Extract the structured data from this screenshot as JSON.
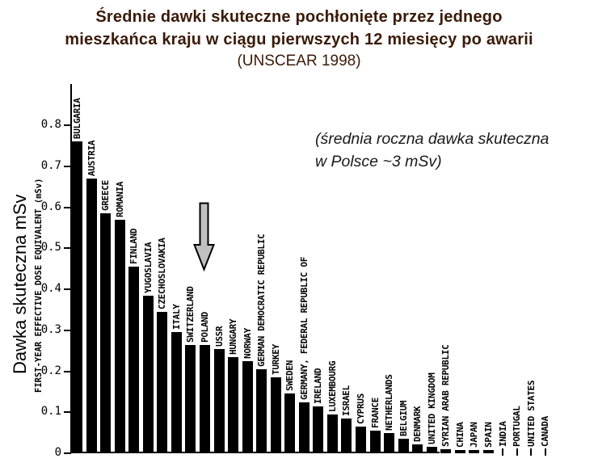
{
  "title": {
    "line1": "Średnie dawki skuteczne pochłonięte przez jednego",
    "line2": "mieszkańca kraju w ciągu pierwszych 12 miesięcy po awarii",
    "line3": "(UNSCEAR 1998)"
  },
  "annotation": {
    "line1": "(średnia roczna dawka skuteczna",
    "line2": "w Polsce ~3 mSv)"
  },
  "colors": {
    "title_text": "#3a1a08",
    "bar": "#000000",
    "arrow_fill": "#c0c0c0",
    "arrow_outline": "#000000",
    "background": "#ffffff"
  },
  "chart_data": {
    "type": "bar",
    "title": "Średnie dawki skuteczne pochłonięte przez jednego mieszkańca kraju w ciągu pierwszych 12 miesięcy po awarii (UNSCEAR 1998)",
    "xlabel": "",
    "ylabel": "FIRST-YEAR EFFECTIVE DOSE EQUIVALENT (mSv)",
    "ylabel_secondary": "Dawka skuteczna mSv",
    "ylim": [
      0,
      0.9
    ],
    "grid": false,
    "legend": false,
    "bar_color": "#000000",
    "yticks": [
      {
        "label": "0.8",
        "value": 0.8
      },
      {
        "label": "0.7",
        "value": 0.7
      },
      {
        "label": "0.6",
        "value": 0.6
      },
      {
        "label": "0.5",
        "value": 0.5
      },
      {
        "label": "0.4",
        "value": 0.4
      },
      {
        "label": "0.3",
        "value": 0.3
      },
      {
        "label": "0.2",
        "value": 0.2
      },
      {
        "label": "0.1",
        "value": 0.1
      },
      {
        "label": "0",
        "value": 0.0
      }
    ],
    "categories": [
      "BULGARIA",
      "AUSTRIA",
      "GREECE",
      "ROMANIA",
      "FINLAND",
      "YUGOSLAVIA",
      "CZECHOSLOVAKIA",
      "ITALY",
      "SWITZERLAND",
      "POLAND",
      "USSR",
      "HUNGARY",
      "NORWAY",
      "GERMAN DEMOCRATIC REPUBLIC",
      "TURKEY",
      "SWEDEN",
      "GERMANY, FEDERAL REPUBLIC OF",
      "IRELAND",
      "LUXEMBOURG",
      "ISRAEL",
      "CYPRUS",
      "FRANCE",
      "NETHERLANDS",
      "BELGIUM",
      "DENMARK",
      "UNITED KINGDOM",
      "SYRIAN ARAB REPUBLIC",
      "CHINA",
      "JAPAN",
      "SPAIN",
      "INDIA",
      "PORTUGAL",
      "UNITED STATES",
      "CANADA"
    ],
    "values": [
      0.76,
      0.67,
      0.585,
      0.57,
      0.455,
      0.385,
      0.345,
      0.295,
      0.265,
      0.265,
      0.255,
      0.235,
      0.225,
      0.205,
      0.185,
      0.145,
      0.125,
      0.115,
      0.095,
      0.085,
      0.065,
      0.055,
      0.05,
      0.035,
      0.022,
      0.015,
      0.009,
      0.008,
      0.008,
      0.007,
      0.002,
      0.002,
      0.002,
      0.001
    ],
    "annotation": "(średnia roczna dawka skuteczna w Polsce ~3 mSv)",
    "arrow_points_to": "POLAND"
  }
}
